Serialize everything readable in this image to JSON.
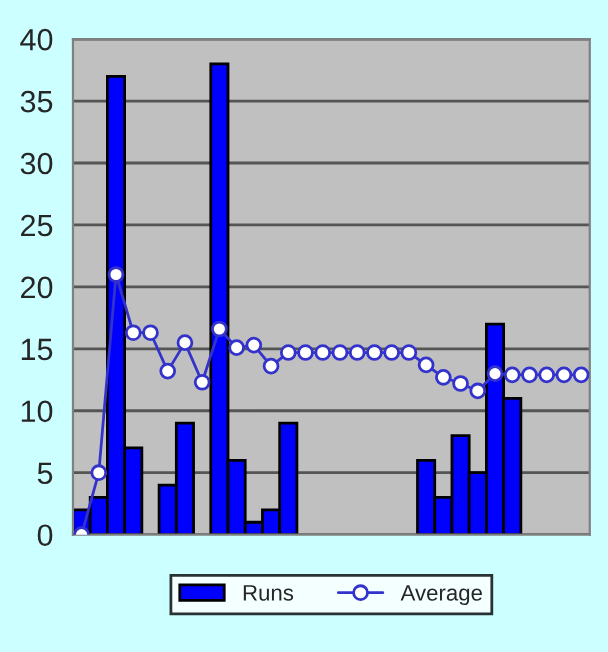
{
  "chart_data": {
    "type": "bar",
    "categories": [
      null,
      null,
      null,
      null,
      null,
      null,
      null,
      null,
      null,
      null,
      null,
      null,
      null,
      null,
      null,
      null,
      null,
      null,
      null,
      null,
      null,
      null,
      null,
      null,
      null,
      null,
      null,
      null,
      null,
      null
    ],
    "series": [
      {
        "name": "Runs",
        "color": "#0000ff",
        "values": [
          2,
          3,
          37,
          7,
          null,
          4,
          9,
          null,
          38,
          6,
          1,
          2,
          9,
          null,
          null,
          null,
          null,
          null,
          null,
          null,
          6,
          3,
          8,
          5,
          17,
          11,
          null,
          null,
          null,
          null
        ]
      },
      {
        "name": "Average",
        "type": "line",
        "color": "#3333cc",
        "marker": "circle",
        "values": [
          0,
          5,
          21,
          16.3,
          16.3,
          13.2,
          15.5,
          12.3,
          16.6,
          15.1,
          15.3,
          13.6,
          14.7,
          14.7,
          14.7,
          14.7,
          14.7,
          14.7,
          14.7,
          14.7,
          13.7,
          12.7,
          12.2,
          11.6,
          13.0,
          12.9,
          12.9,
          12.9,
          12.9,
          12.9
        ]
      }
    ],
    "ylim": [
      0,
      40
    ],
    "yticks": [
      0,
      5,
      10,
      15,
      20,
      25,
      30,
      35,
      40
    ],
    "grid": "y",
    "legend": "bottom"
  }
}
